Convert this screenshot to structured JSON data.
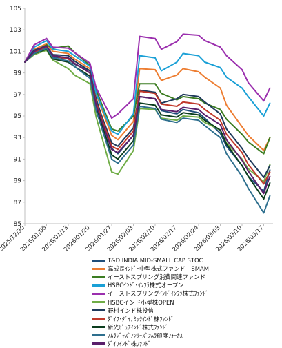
{
  "chart_data": {
    "type": "line",
    "title": "",
    "xlabel": "",
    "ylabel": "",
    "ylim": [
      85,
      105
    ],
    "y_ticks": [
      85,
      87,
      89,
      91,
      93,
      95,
      97,
      99,
      101,
      103,
      105
    ],
    "x_ticks": [
      "2025/12/30",
      "2026/01/06",
      "2026/01/13",
      "2026/01/20",
      "2026/01/27",
      "2026/02/03",
      "2026/02/10",
      "2026/02/17",
      "2026/02/24",
      "2026/03/03",
      "2026/03/10",
      "2026/03/17"
    ],
    "grid": false,
    "legend_position": "bottom",
    "x": [
      "2025/12/30",
      "2026/01/02",
      "2026/01/06",
      "2026/01/08",
      "2026/01/13",
      "2026/01/15",
      "2026/01/20",
      "2026/01/22",
      "2026/01/27",
      "2026/01/29",
      "2026/02/03",
      "2026/02/05",
      "2026/02/10",
      "2026/02/12",
      "2026/02/17",
      "2026/02/19",
      "2026/02/24",
      "2026/02/26",
      "2026/03/03",
      "2026/03/05",
      "2026/03/10",
      "2026/03/12",
      "2026/03/17",
      "2026/03/19"
    ],
    "series": [
      {
        "name": "T&D INDIA MID-SMALL CAP STOC",
        "color": "#1f4e79",
        "values": [
          100,
          100.9,
          101.4,
          100.5,
          100.3,
          99.8,
          99.2,
          96.6,
          92.0,
          91.5,
          93.2,
          96.8,
          96.6,
          95.5,
          95.2,
          95.6,
          95.3,
          94.8,
          93.4,
          92.2,
          90.4,
          89.4,
          88.0,
          90.0
        ]
      },
      {
        "name": "高成長ｲﾝﾄﾞ･中型株式ファンド　SMAM",
        "color": "#ed7d31",
        "values": [
          100,
          101.2,
          101.7,
          101.0,
          100.8,
          100.3,
          99.4,
          97.0,
          93.2,
          92.8,
          94.5,
          99.4,
          99.3,
          98.3,
          98.8,
          99.4,
          99.1,
          98.6,
          97.6,
          96.0,
          94.0,
          93.2,
          91.8,
          93.0
        ]
      },
      {
        "name": "イーストスプリング消費関連ファンド",
        "color": "#3c7d22",
        "values": [
          100,
          101.0,
          101.6,
          101.3,
          101.5,
          100.9,
          99.7,
          97.4,
          93.8,
          93.6,
          95.0,
          98.0,
          98.0,
          97.1,
          96.5,
          96.8,
          96.6,
          96.2,
          95.6,
          94.7,
          93.3,
          92.6,
          91.5,
          93.0
        ]
      },
      {
        "name": "HSBCｲﾝﾄﾞ･ｲﾝﾌﾗ株式オープン",
        "color": "#1aa0d6",
        "values": [
          100,
          101.4,
          102.0,
          101.2,
          101.0,
          100.6,
          99.6,
          97.1,
          93.6,
          93.3,
          95.2,
          100.6,
          100.4,
          99.2,
          100.0,
          100.8,
          100.6,
          100.0,
          99.5,
          98.6,
          97.6,
          96.8,
          95.0,
          96.2
        ]
      },
      {
        "name": "イーストスプリングｲﾝﾄﾞｲﾝﾌﾗ株式ﾌｧﾝﾄﾞ",
        "color": "#9b2fae",
        "values": [
          100,
          101.6,
          102.2,
          101.4,
          101.3,
          100.9,
          99.9,
          97.6,
          94.8,
          95.2,
          96.6,
          102.4,
          102.2,
          101.2,
          101.9,
          102.6,
          102.5,
          102.0,
          101.4,
          100.6,
          99.3,
          98.1,
          96.4,
          97.6
        ]
      },
      {
        "name": "HSBCインド小型株OPEN",
        "color": "#70ad47",
        "values": [
          100,
          100.7,
          101.1,
          100.2,
          99.4,
          98.8,
          98.0,
          94.9,
          89.8,
          89.6,
          91.8,
          95.7,
          95.6,
          94.8,
          94.6,
          95.0,
          94.9,
          94.4,
          93.7,
          92.5,
          91.0,
          90.1,
          88.9,
          90.5
        ]
      },
      {
        "name": "野村インド株投信",
        "color": "#1f3a5c",
        "values": [
          100,
          101.1,
          101.5,
          100.7,
          100.6,
          100.1,
          99.2,
          96.4,
          92.5,
          92.2,
          93.9,
          97.4,
          97.2,
          96.2,
          96.6,
          97.0,
          96.8,
          96.3,
          95.2,
          93.8,
          92.0,
          91.1,
          89.3,
          90.4
        ]
      },
      {
        "name": "ﾀﾞｲﾜ･ﾀﾞｲﾅﾐｯｸｲﾝﾄﾞ株ﾌｧﾝﾄﾞ",
        "color": "#c0392b",
        "values": [
          100,
          100.9,
          101.4,
          100.6,
          100.3,
          99.9,
          99.0,
          96.2,
          92.2,
          91.9,
          93.6,
          97.3,
          97.1,
          96.1,
          95.9,
          96.3,
          96.1,
          95.6,
          94.6,
          93.3,
          91.6,
          90.5,
          88.7,
          89.8
        ]
      },
      {
        "name": "新光ﾋﾟｭｱｲﾝﾄﾞ株式ﾌｧﾝﾄﾞ",
        "color": "#0b3d1e",
        "values": [
          100,
          100.8,
          101.2,
          100.3,
          100.0,
          99.6,
          98.7,
          95.8,
          91.4,
          91.0,
          92.7,
          96.2,
          96.0,
          95.1,
          94.9,
          95.3,
          95.1,
          94.6,
          93.7,
          92.4,
          90.4,
          89.4,
          87.3,
          88.8
        ]
      },
      {
        "name": "ﾉﾑﾗｼﾞｬｽﾞｱﾝﾘｰｽﾞﾝﾑﾗ印度ﾌｫｰｶｽ",
        "color": "#2e6f8e",
        "values": [
          100,
          100.8,
          101.3,
          100.4,
          100.1,
          99.6,
          98.5,
          95.5,
          91.0,
          90.6,
          92.3,
          95.9,
          95.7,
          94.7,
          94.4,
          94.8,
          94.6,
          94.1,
          93.0,
          91.5,
          89.4,
          88.3,
          86.0,
          87.6
        ]
      },
      {
        "name": "ﾀﾞｲﾜｲﾝﾄﾞ株ﾌｧﾝﾄﾞ",
        "color": "#5b1f6b",
        "values": [
          100,
          101.0,
          101.5,
          100.6,
          100.4,
          99.9,
          99.0,
          96.0,
          91.9,
          91.6,
          93.2,
          96.8,
          96.6,
          95.6,
          95.4,
          95.8,
          95.6,
          95.1,
          94.2,
          92.8,
          90.9,
          89.9,
          87.8,
          89.4
        ]
      }
    ]
  }
}
